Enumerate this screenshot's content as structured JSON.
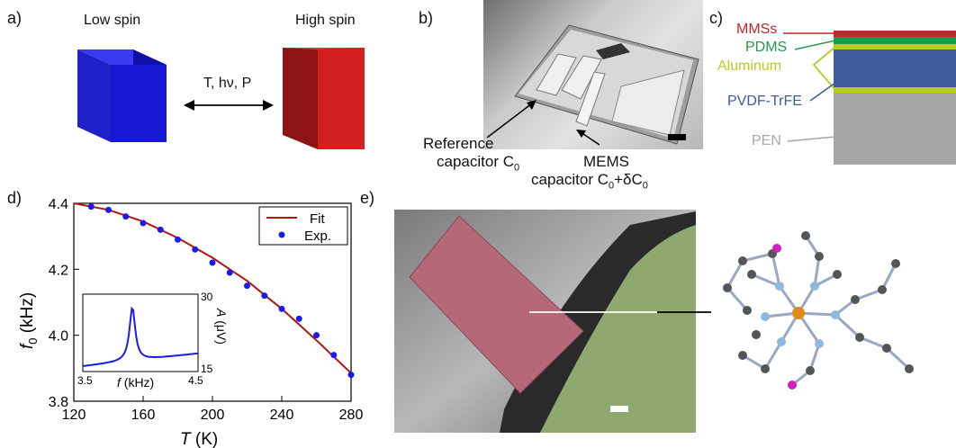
{
  "panel_a": {
    "label": "a)",
    "low_spin": "Low spin",
    "high_spin": "High spin",
    "stimuli": "T, hν, P",
    "colors": {
      "low": "#1414c8",
      "high": "#c41a1a"
    }
  },
  "panel_b": {
    "label": "b)",
    "ref_line1": "Reference",
    "ref_line2": "capacitor C",
    "ref_sub": "0",
    "mems_line1": "MEMS",
    "mems_line2a": "capacitor C",
    "mems_sub1": "0",
    "mems_line2b": "+δC",
    "mems_sub2": "0"
  },
  "panel_c": {
    "label": "c)",
    "layers": [
      {
        "name": "MMSs",
        "color": "#c0262c"
      },
      {
        "name": "PDMS",
        "color": "#1f9a4b"
      },
      {
        "name": "Aluminum",
        "color": "#b6cc1e"
      },
      {
        "name": "PVDF-TrFE",
        "color": "#3f5a9c"
      },
      {
        "name": "PEN",
        "color": "#a6a6a6"
      }
    ]
  },
  "panel_d": {
    "label": "d)",
    "legend_fit": "Fit",
    "legend_exp": "Exp.",
    "xlabel_main": "T",
    "xlabel_unit": " (K)",
    "ylabel_main": "f",
    "ylabel_sub": "0",
    "ylabel_unit": " (kHz)",
    "inset": {
      "xlabel_main": "f",
      "xlabel_unit": " (kHz)",
      "ylabel_main": "A",
      "ylabel_unit": " (μV)",
      "x_ticks": [
        "3.5",
        "4.5"
      ],
      "y_ticks": [
        "30",
        "15"
      ]
    }
  },
  "panel_e": {
    "label": "e)"
  },
  "chart_data": {
    "type": "scatter",
    "title": "",
    "xlabel": "T (K)",
    "ylabel": "f0 (kHz)",
    "xlim": [
      120,
      280
    ],
    "ylim": [
      3.8,
      4.4
    ],
    "x_ticks": [
      "120",
      "160",
      "200",
      "240",
      "280"
    ],
    "y_ticks": [
      "4.4",
      "4.2",
      "4.0",
      "3.8"
    ],
    "legend_position": "top-right",
    "series": [
      {
        "name": "Exp.",
        "color": "#1a1aee",
        "x": [
          130,
          140,
          150,
          160,
          170,
          180,
          190,
          200,
          210,
          220,
          230,
          240,
          250,
          260,
          270,
          280
        ],
        "y": [
          4.39,
          4.38,
          4.36,
          4.34,
          4.32,
          4.29,
          4.26,
          4.22,
          4.19,
          4.15,
          4.12,
          4.08,
          4.05,
          4.0,
          3.94,
          3.88
        ]
      },
      {
        "name": "Fit",
        "color": "#b3160f",
        "x": [
          120,
          140,
          160,
          180,
          200,
          220,
          240,
          260,
          280
        ],
        "y": [
          4.4,
          4.38,
          4.345,
          4.295,
          4.235,
          4.165,
          4.08,
          3.985,
          3.885
        ]
      }
    ],
    "inset": {
      "type": "line",
      "xlabel": "f (kHz)",
      "ylabel": "A (μV)",
      "xlim": [
        3.5,
        4.5
      ],
      "ylim": [
        15,
        30
      ],
      "peak_x": 3.93,
      "peak_y": 27.5,
      "baseline_left": 16,
      "baseline_right": 18.5,
      "color": "#1a1aee"
    }
  }
}
